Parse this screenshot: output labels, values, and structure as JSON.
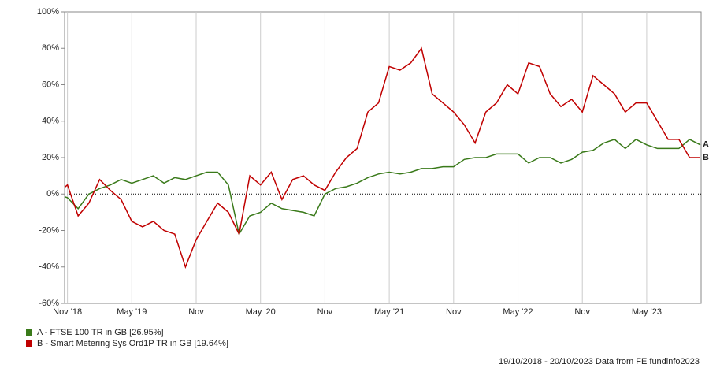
{
  "chart_data": {
    "type": "line",
    "x": [
      "2018-10",
      "2018-11",
      "2018-12",
      "2019-01",
      "2019-02",
      "2019-03",
      "2019-04",
      "2019-05",
      "2019-06",
      "2019-07",
      "2019-08",
      "2019-09",
      "2019-10",
      "2019-11",
      "2019-12",
      "2020-01",
      "2020-02",
      "2020-03",
      "2020-04",
      "2020-05",
      "2020-06",
      "2020-07",
      "2020-08",
      "2020-09",
      "2020-10",
      "2020-11",
      "2020-12",
      "2021-01",
      "2021-02",
      "2021-03",
      "2021-04",
      "2021-05",
      "2021-06",
      "2021-07",
      "2021-08",
      "2021-09",
      "2021-10",
      "2021-11",
      "2021-12",
      "2022-01",
      "2022-02",
      "2022-03",
      "2022-04",
      "2022-05",
      "2022-06",
      "2022-07",
      "2022-08",
      "2022-09",
      "2022-10",
      "2022-11",
      "2022-12",
      "2023-01",
      "2023-02",
      "2023-03",
      "2023-04",
      "2023-05",
      "2023-06",
      "2023-07",
      "2023-08",
      "2023-09",
      "2023-10"
    ],
    "series": [
      {
        "name": "A - FTSE 100 TR in GB [26.95%]",
        "end_label": "A",
        "color": "#3a7a1a",
        "values": [
          0,
          -2,
          -8,
          0,
          3,
          5,
          8,
          6,
          8,
          10,
          6,
          9,
          8,
          10,
          12,
          12,
          5,
          -22,
          -12,
          -10,
          -5,
          -8,
          -9,
          -10,
          -12,
          0,
          3,
          4,
          6,
          9,
          11,
          12,
          11,
          12,
          14,
          14,
          15,
          15,
          19,
          20,
          20,
          22,
          22,
          22,
          17,
          20,
          20,
          17,
          19,
          23,
          24,
          28,
          30,
          25,
          30,
          27,
          25,
          25,
          25,
          30,
          27
        ]
      },
      {
        "name": "B - Smart Metering Sys Ord1P TR in GB [19.64%]",
        "end_label": "B",
        "color": "#c00000",
        "values": [
          0,
          5,
          -12,
          -5,
          8,
          2,
          -3,
          -15,
          -18,
          -15,
          -20,
          -22,
          -40,
          -25,
          -15,
          -5,
          -10,
          -22,
          10,
          5,
          12,
          -3,
          8,
          10,
          5,
          2,
          12,
          20,
          25,
          45,
          50,
          70,
          68,
          72,
          80,
          55,
          50,
          45,
          38,
          28,
          45,
          50,
          60,
          55,
          72,
          70,
          55,
          48,
          52,
          45,
          65,
          60,
          55,
          45,
          50,
          50,
          40,
          30,
          30,
          20,
          20
        ]
      }
    ],
    "xlim": [
      "2018-10",
      "2023-10"
    ],
    "xticks": [
      {
        "value": "2018-11",
        "label": "Nov '18"
      },
      {
        "value": "2019-05",
        "label": "May '19"
      },
      {
        "value": "2019-11",
        "label": "Nov"
      },
      {
        "value": "2020-05",
        "label": "May '20"
      },
      {
        "value": "2020-11",
        "label": "Nov"
      },
      {
        "value": "2021-05",
        "label": "May '21"
      },
      {
        "value": "2021-11",
        "label": "Nov"
      },
      {
        "value": "2022-05",
        "label": "May '22"
      },
      {
        "value": "2022-11",
        "label": "Nov"
      },
      {
        "value": "2023-05",
        "label": "May '23"
      }
    ],
    "ylim": [
      -60,
      100
    ],
    "yticks": [
      {
        "value": -60,
        "label": "-60%"
      },
      {
        "value": -40,
        "label": "-40%"
      },
      {
        "value": -20,
        "label": "-20%"
      },
      {
        "value": 0,
        "label": "0%"
      },
      {
        "value": 20,
        "label": "20%"
      },
      {
        "value": 40,
        "label": "40%"
      },
      {
        "value": 60,
        "label": "60%"
      },
      {
        "value": 80,
        "label": "80%"
      },
      {
        "value": 100,
        "label": "100%"
      }
    ],
    "grid": true,
    "zero_line": true,
    "footer": "19/10/2018 - 20/10/2023 Data from FE fundinfo2023"
  }
}
